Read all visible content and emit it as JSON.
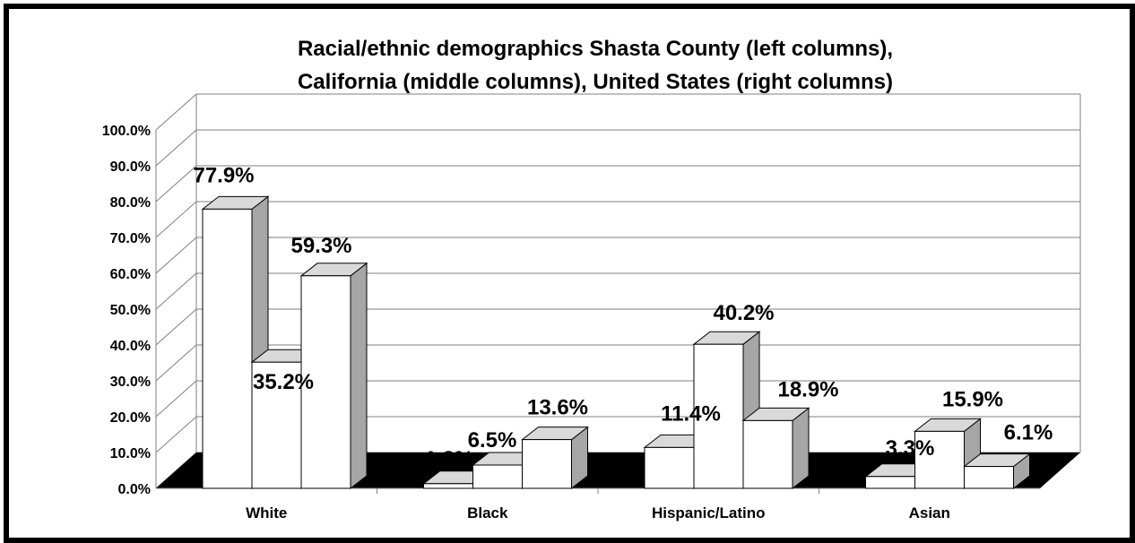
{
  "chart_data": {
    "type": "bar",
    "title": "Racial/ethnic demographics Shasta County (left columns),",
    "subtitle": "California (middle columns), United States (right columns)",
    "xlabel": "",
    "ylabel": "",
    "ylim": [
      0,
      100
    ],
    "yticks": [
      "0.0%",
      "10.0%",
      "20.0%",
      "30.0%",
      "40.0%",
      "50.0%",
      "60.0%",
      "70.0%",
      "80.0%",
      "90.0%",
      "100.0%"
    ],
    "categories": [
      "White",
      "Black",
      "Hispanic/Latino",
      "Asian"
    ],
    "series": [
      {
        "values": [
          77.9,
          1.3,
          11.4,
          3.3
        ],
        "labels": [
          "77.9%",
          "1.3%",
          "11.4%",
          "3.3%"
        ]
      },
      {
        "values": [
          35.2,
          6.5,
          40.2,
          15.9
        ],
        "labels": [
          "35.2%",
          "6.5%",
          "40.2%",
          "15.9%"
        ]
      },
      {
        "values": [
          59.3,
          13.6,
          18.9,
          6.1
        ],
        "labels": [
          "59.3%",
          "13.6%",
          "18.9%",
          "6.1%"
        ]
      }
    ],
    "grid": true,
    "legend": "none",
    "style": "3d-column",
    "colors": {
      "bar_front": "#ffffff",
      "bar_side": "#a6a6a6",
      "bar_top": "#d9d9d9",
      "floor": "#000000",
      "grid": "#7f7f7f"
    }
  }
}
